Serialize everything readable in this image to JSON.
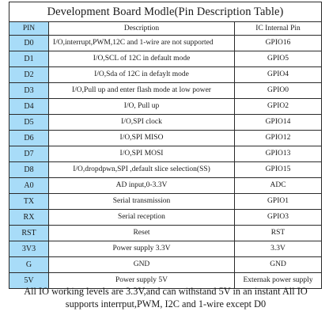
{
  "table": {
    "title": "Development Board Modle(Pin Description Table)",
    "headers": {
      "pin": "PIN",
      "description": "Description",
      "ic": "IC Internal Pin"
    },
    "rows": [
      {
        "pin": "D0",
        "description": "I/O,interrupt,PWM,12C and 1-wire are not supported",
        "ic": "GPIO16",
        "align": "left"
      },
      {
        "pin": "D1",
        "description": "I/O,SCL of 12C in default mode",
        "ic": "GPIO5",
        "align": "center"
      },
      {
        "pin": "D2",
        "description": "I/O,Sda of 12C in defaylt mode",
        "ic": "GPIO4",
        "align": "center"
      },
      {
        "pin": "D3",
        "description": "I/O,Pull up and enter flash mode at low power",
        "ic": "GPIO0",
        "align": "center"
      },
      {
        "pin": "D4",
        "description": "I/O, Pull up",
        "ic": "GPIO2",
        "align": "center"
      },
      {
        "pin": "D5",
        "description": "I/O,SPI  clock",
        "ic": "GPIO14",
        "align": "center"
      },
      {
        "pin": "D6",
        "description": "I/O,SPI  MISO",
        "ic": "GPIO12",
        "align": "center"
      },
      {
        "pin": "D7",
        "description": "I/O,SPI  MOSI",
        "ic": "GPIO13",
        "align": "center"
      },
      {
        "pin": "D8",
        "description": "I/O,dropdpwn,SPI ,default slice selection(SS)",
        "ic": "GPIO15",
        "align": "center"
      },
      {
        "pin": "A0",
        "description": "AD input,0-3.3V",
        "ic": "ADC",
        "align": "center"
      },
      {
        "pin": "TX",
        "description": "Serial transmission",
        "ic": "GPIO1",
        "align": "center"
      },
      {
        "pin": "RX",
        "description": "Serial reception",
        "ic": "GPIO3",
        "align": "center"
      },
      {
        "pin": "RST",
        "description": "Reset",
        "ic": "RST",
        "align": "center"
      },
      {
        "pin": "3V3",
        "description": "Power supply 3.3V",
        "ic": "3.3V",
        "align": "center"
      },
      {
        "pin": "G",
        "description": "GND",
        "ic": "GND",
        "align": "center"
      },
      {
        "pin": "5V",
        "description": "Power supply 5V",
        "ic": "Externak power supply",
        "align": "center"
      }
    ]
  },
  "footnote": "All IO working levels are 3.3V,and can withstand 5V in an instant All IO supports interrput,PWM, I2C and 1-wire except D0",
  "colors": {
    "pin_column_background": "#a8dcf8",
    "border": "#2a2a2a",
    "text": "#1a1a1a"
  }
}
